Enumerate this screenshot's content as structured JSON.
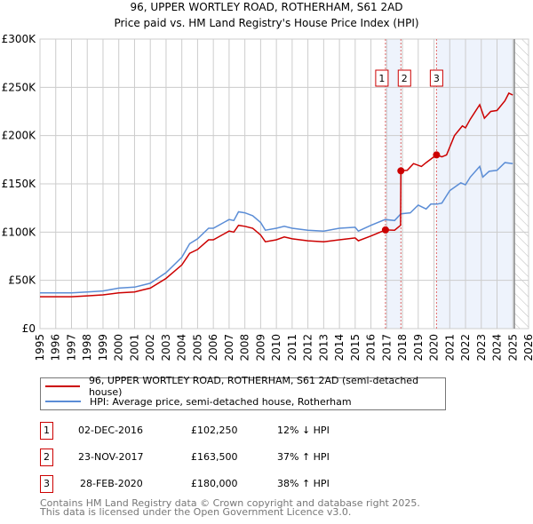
{
  "chart_data": {
    "type": "line",
    "title": "96, UPPER WORTLEY ROAD, ROTHERHAM, S61 2AD",
    "subtitle": "Price paid vs. HM Land Registry's House Price Index (HPI)",
    "xlim": [
      1995,
      2026
    ],
    "ylim": [
      0,
      300000
    ],
    "y_ticks": [
      0,
      50000,
      100000,
      150000,
      200000,
      250000,
      300000
    ],
    "y_tick_labels": [
      "£0",
      "£50K",
      "£100K",
      "£150K",
      "£200K",
      "£250K",
      "£300K"
    ],
    "x_ticks": [
      "1995",
      "1996",
      "1997",
      "1998",
      "1999",
      "2000",
      "2001",
      "2002",
      "2003",
      "2004",
      "2005",
      "2006",
      "2007",
      "2008",
      "2009",
      "2010",
      "2011",
      "2012",
      "2013",
      "2014",
      "2015",
      "2016",
      "2017",
      "2018",
      "2019",
      "2020",
      "2021",
      "2022",
      "2023",
      "2024",
      "2025",
      "2026"
    ],
    "grid": true,
    "forecast_hatch_from": 2025.1,
    "series": [
      {
        "name": "96, UPPER WORTLEY ROAD, ROTHERHAM, S61 2AD (semi-detached house)",
        "color": "#cc0000",
        "points": [
          [
            1995,
            33000
          ],
          [
            1996,
            33000
          ],
          [
            1997,
            33000
          ],
          [
            1998,
            34000
          ],
          [
            1999,
            35000
          ],
          [
            2000,
            37000
          ],
          [
            2001,
            38000
          ],
          [
            2001.5,
            40000
          ],
          [
            2002,
            42000
          ],
          [
            2003,
            52000
          ],
          [
            2004,
            66000
          ],
          [
            2004.5,
            78000
          ],
          [
            2005,
            82000
          ],
          [
            2005.7,
            92000
          ],
          [
            2006,
            92000
          ],
          [
            2007,
            101000
          ],
          [
            2007.3,
            100000
          ],
          [
            2007.6,
            107000
          ],
          [
            2008,
            106000
          ],
          [
            2008.5,
            104000
          ],
          [
            2009,
            97000
          ],
          [
            2009.3,
            90000
          ],
          [
            2010,
            92000
          ],
          [
            2010.5,
            95000
          ],
          [
            2011,
            93000
          ],
          [
            2012,
            91000
          ],
          [
            2013,
            90000
          ],
          [
            2014,
            92000
          ],
          [
            2015,
            94000
          ],
          [
            2015.2,
            91000
          ],
          [
            2016,
            96000
          ],
          [
            2016.92,
            102250
          ],
          [
            2017.5,
            102000
          ],
          [
            2017.88,
            107000
          ],
          [
            2017.9,
            163500
          ],
          [
            2018.3,
            164000
          ],
          [
            2018.7,
            171000
          ],
          [
            2019.2,
            168000
          ],
          [
            2019.5,
            172000
          ],
          [
            2020.16,
            180000
          ],
          [
            2020.5,
            178000
          ],
          [
            2020.8,
            180000
          ],
          [
            2021.3,
            200000
          ],
          [
            2021.8,
            210000
          ],
          [
            2022,
            208000
          ],
          [
            2022.3,
            217000
          ],
          [
            2022.9,
            232000
          ],
          [
            2023.2,
            218000
          ],
          [
            2023.6,
            225000
          ],
          [
            2024,
            226000
          ],
          [
            2024.5,
            236000
          ],
          [
            2024.75,
            244000
          ],
          [
            2025,
            242000
          ]
        ]
      },
      {
        "name": "HPI: Average price, semi-detached house, Rotherham",
        "color": "#5b8dd6",
        "points": [
          [
            1995,
            37000
          ],
          [
            1996,
            37000
          ],
          [
            1997,
            37000
          ],
          [
            1998,
            38000
          ],
          [
            1999,
            39000
          ],
          [
            2000,
            42000
          ],
          [
            2001,
            43000
          ],
          [
            2001.5,
            45000
          ],
          [
            2002,
            47000
          ],
          [
            2003,
            58000
          ],
          [
            2004,
            74000
          ],
          [
            2004.5,
            88000
          ],
          [
            2005,
            93000
          ],
          [
            2005.7,
            104000
          ],
          [
            2006,
            104000
          ],
          [
            2007,
            113000
          ],
          [
            2007.3,
            112000
          ],
          [
            2007.6,
            121000
          ],
          [
            2008,
            120000
          ],
          [
            2008.5,
            117000
          ],
          [
            2009,
            110000
          ],
          [
            2009.3,
            102000
          ],
          [
            2010,
            104000
          ],
          [
            2010.5,
            106000
          ],
          [
            2011,
            104000
          ],
          [
            2012,
            102000
          ],
          [
            2013,
            101000
          ],
          [
            2014,
            104000
          ],
          [
            2015,
            105000
          ],
          [
            2015.2,
            101000
          ],
          [
            2016,
            107000
          ],
          [
            2016.9,
            113000
          ],
          [
            2017.5,
            112000
          ],
          [
            2017.9,
            119000
          ],
          [
            2018.5,
            120000
          ],
          [
            2019,
            128000
          ],
          [
            2019.5,
            124000
          ],
          [
            2019.8,
            129000
          ],
          [
            2020.2,
            129000
          ],
          [
            2020.5,
            130000
          ],
          [
            2021,
            143000
          ],
          [
            2021.7,
            151000
          ],
          [
            2022,
            149000
          ],
          [
            2022.3,
            157000
          ],
          [
            2022.9,
            168000
          ],
          [
            2023.1,
            157000
          ],
          [
            2023.5,
            163000
          ],
          [
            2024,
            164000
          ],
          [
            2024.5,
            172000
          ],
          [
            2025,
            171000
          ]
        ]
      }
    ],
    "sales": [
      {
        "label": "1",
        "x": 2016.92,
        "y": 102250
      },
      {
        "label": "2",
        "x": 2017.9,
        "y": 163500
      },
      {
        "label": "3",
        "x": 2020.16,
        "y": 180000
      }
    ],
    "shaded_ranges": [
      [
        2016.92,
        2017.9
      ],
      [
        2020.16,
        2025.1
      ]
    ]
  },
  "legend": {
    "property": "96, UPPER WORTLEY ROAD, ROTHERHAM, S61 2AD (semi-detached house)",
    "hpi": "HPI: Average price, semi-detached house, Rotherham"
  },
  "transactions": [
    {
      "num": "1",
      "date": "02-DEC-2016",
      "price": "£102,250",
      "hpi": "12% ↓ HPI"
    },
    {
      "num": "2",
      "date": "23-NOV-2017",
      "price": "£163,500",
      "hpi": "37% ↑ HPI"
    },
    {
      "num": "3",
      "date": "28-FEB-2020",
      "price": "£180,000",
      "hpi": "38% ↑ HPI"
    }
  ],
  "footer": {
    "line1": "Contains HM Land Registry data © Crown copyright and database right 2025.",
    "line2": "This data is licensed under the Open Government Licence v3.0."
  }
}
